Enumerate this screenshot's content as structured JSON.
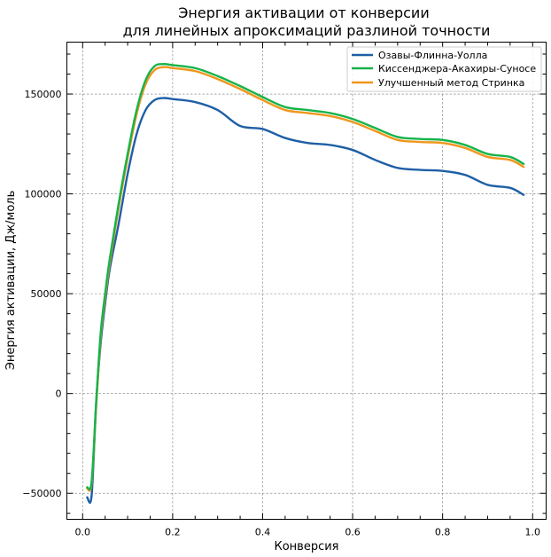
{
  "chart_data": {
    "type": "line",
    "title_lines": [
      "Энергия активации от конверсии",
      "для линейных апроксимаций разлиной точности"
    ],
    "xlabel": "Конверсия",
    "ylabel": "Энергия активации, Дж/моль",
    "xlim": [
      -0.035,
      1.03
    ],
    "ylim": [
      -63000,
      176000
    ],
    "x_ticks": [
      0.0,
      0.2,
      0.4,
      0.6,
      0.8,
      1.0
    ],
    "x_tick_labels": [
      "0.0",
      "0.2",
      "0.4",
      "0.6",
      "0.8",
      "1.0"
    ],
    "y_ticks": [
      -50000,
      0,
      50000,
      100000,
      150000
    ],
    "y_tick_labels": [
      "−50000",
      "0",
      "50000",
      "100000",
      "150000"
    ],
    "grid": true,
    "legend_position": "upper-right",
    "series": [
      {
        "name": "Озавы-Флинна-Уолла",
        "color": "#1f5fa6",
        "x": [
          0.01,
          0.02,
          0.03,
          0.04,
          0.05,
          0.06,
          0.08,
          0.1,
          0.12,
          0.14,
          0.16,
          0.18,
          0.2,
          0.25,
          0.3,
          0.35,
          0.4,
          0.45,
          0.5,
          0.55,
          0.6,
          0.65,
          0.7,
          0.75,
          0.8,
          0.85,
          0.9,
          0.95,
          0.98
        ],
        "y": [
          -52000,
          -51000,
          -5000,
          25000,
          45000,
          62000,
          85000,
          110000,
          130000,
          142000,
          147000,
          148000,
          147500,
          146000,
          142000,
          134000,
          132500,
          128000,
          125500,
          124500,
          122000,
          117000,
          113000,
          112000,
          111500,
          109500,
          104500,
          103000,
          99500
        ]
      },
      {
        "name": "Киссенджера-Акахиры-Суносе",
        "color": "#17b34a",
        "x": [
          0.01,
          0.02,
          0.03,
          0.04,
          0.05,
          0.06,
          0.08,
          0.1,
          0.12,
          0.14,
          0.16,
          0.18,
          0.2,
          0.25,
          0.3,
          0.35,
          0.4,
          0.45,
          0.5,
          0.55,
          0.6,
          0.65,
          0.7,
          0.75,
          0.8,
          0.85,
          0.9,
          0.95,
          0.98
        ],
        "y": [
          -47000,
          -44000,
          -5000,
          30000,
          50000,
          67000,
          95000,
          120000,
          142000,
          157000,
          164000,
          165000,
          164500,
          163000,
          159000,
          154000,
          148500,
          143500,
          142000,
          140500,
          137500,
          133000,
          128500,
          127500,
          127000,
          124500,
          120000,
          118500,
          115000
        ]
      },
      {
        "name": "Улучшенный метод Стринка",
        "color": "#f0961c",
        "x": [
          0.01,
          0.02,
          0.03,
          0.04,
          0.05,
          0.06,
          0.08,
          0.1,
          0.12,
          0.14,
          0.16,
          0.18,
          0.2,
          0.25,
          0.3,
          0.35,
          0.4,
          0.45,
          0.5,
          0.55,
          0.6,
          0.65,
          0.7,
          0.75,
          0.8,
          0.85,
          0.9,
          0.95,
          0.98
        ],
        "y": [
          -47500,
          -45000,
          -7000,
          28000,
          48000,
          65000,
          93000,
          118000,
          140000,
          155000,
          162000,
          163500,
          163000,
          161500,
          157500,
          152500,
          147000,
          142000,
          140500,
          139000,
          136000,
          131500,
          127000,
          126000,
          125500,
          123000,
          118500,
          117000,
          113500
        ]
      }
    ]
  }
}
